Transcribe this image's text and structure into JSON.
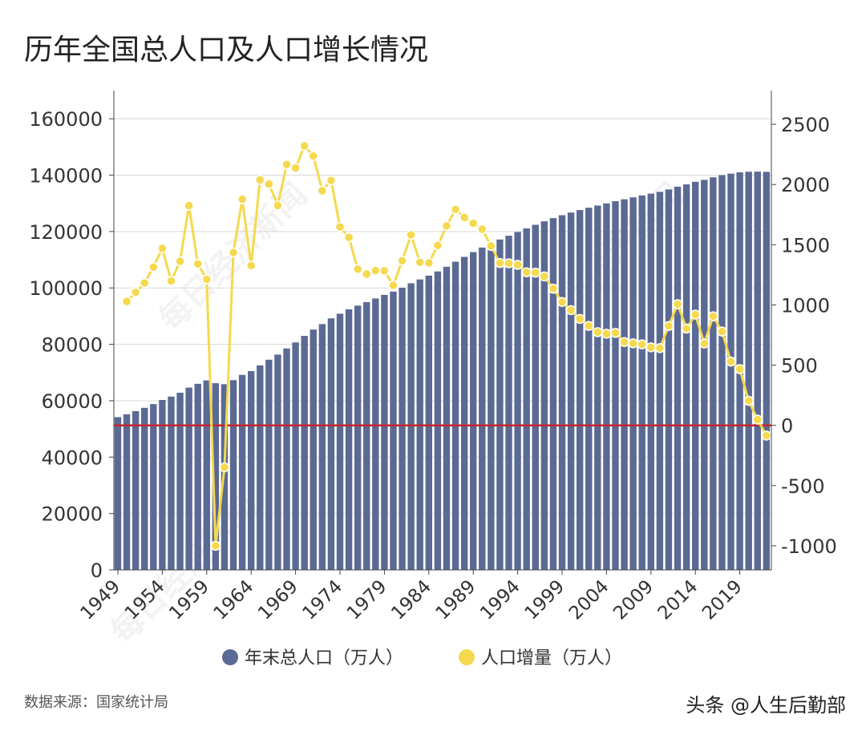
{
  "chart_data": {
    "type": "bar+line",
    "title": "历年全国总人口及人口增长情况",
    "source": "数据来源：国家统计局",
    "credit": "头条 @人生后勤部",
    "watermark": "每日经济新闻",
    "grid": true,
    "legend_position": "bottom",
    "years": [
      1949,
      1950,
      1951,
      1952,
      1953,
      1954,
      1955,
      1956,
      1957,
      1958,
      1959,
      1960,
      1961,
      1962,
      1963,
      1964,
      1965,
      1966,
      1967,
      1968,
      1969,
      1970,
      1971,
      1972,
      1973,
      1974,
      1975,
      1976,
      1977,
      1978,
      1979,
      1980,
      1981,
      1982,
      1983,
      1984,
      1985,
      1986,
      1987,
      1988,
      1989,
      1990,
      1991,
      1992,
      1993,
      1994,
      1995,
      1996,
      1997,
      1998,
      1999,
      2000,
      2001,
      2002,
      2003,
      2004,
      2005,
      2006,
      2007,
      2008,
      2009,
      2010,
      2011,
      2012,
      2013,
      2014,
      2015,
      2016,
      2017,
      2018,
      2019,
      2020,
      2021,
      2022
    ],
    "x_tick_labels": [
      "1949",
      "1954",
      "1959",
      "1964",
      "1969",
      "1974",
      "1979",
      "1984",
      "1989",
      "1994",
      "1999",
      "2004",
      "2009",
      "2014",
      "2019"
    ],
    "left_axis": {
      "ylim": [
        0,
        170000
      ],
      "ticks": [
        "0",
        "20000",
        "40000",
        "60000",
        "80000",
        "100000",
        "120000",
        "140000",
        "160000"
      ]
    },
    "right_axis": {
      "ylim": [
        -1200,
        2780
      ],
      "ticks": [
        "-1000",
        "-500",
        "0",
        "500",
        "1000",
        "1500",
        "2000",
        "2500"
      ]
    },
    "zero_line_color": "#c8242b",
    "series": [
      {
        "name": "年末总人口（万人）",
        "type": "bar",
        "axis": "left",
        "color": "#5a6a94",
        "values": [
          54167,
          55196,
          56300,
          57482,
          58796,
          60266,
          61465,
          62828,
          64653,
          65994,
          67207,
          66207,
          65859,
          67295,
          69172,
          70499,
          72538,
          74542,
          76368,
          78534,
          80671,
          82992,
          85229,
          87177,
          89211,
          90859,
          92420,
          93717,
          94974,
          96259,
          97542,
          98705,
          100072,
          101654,
          103008,
          104357,
          105851,
          107507,
          109300,
          111026,
          112704,
          114333,
          115823,
          117171,
          118517,
          119850,
          121121,
          122389,
          123626,
          124761,
          125786,
          126743,
          127627,
          128453,
          129227,
          129988,
          130756,
          131448,
          132129,
          132802,
          133450,
          134091,
          134916,
          135922,
          136726,
          137646,
          138326,
          139232,
          140011,
          140541,
          141008,
          141212,
          141260,
          141175
        ]
      },
      {
        "name": "人口增量（万人）",
        "type": "line",
        "axis": "right",
        "color": "#f5d94e",
        "start_year": 1950,
        "values": [
          1029,
          1104,
          1182,
          1314,
          1470,
          1199,
          1363,
          1825,
          1341,
          1213,
          -1000,
          -348,
          1436,
          1877,
          1327,
          2039,
          2004,
          1826,
          2166,
          2137,
          2321,
          2237,
          1948,
          2034,
          1648,
          1561,
          1297,
          1257,
          1285,
          1283,
          1163,
          1367,
          1582,
          1354,
          1349,
          1494,
          1656,
          1793,
          1726,
          1678,
          1629,
          1490,
          1348,
          1346,
          1333,
          1271,
          1268,
          1237,
          1135,
          1025,
          957,
          884,
          826,
          774,
          761,
          768,
          692,
          681,
          673,
          648,
          641,
          825,
          1006,
          804,
          920,
          680,
          906,
          779,
          530,
          467,
          204,
          48,
          -85
        ]
      }
    ]
  }
}
